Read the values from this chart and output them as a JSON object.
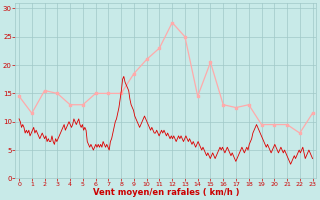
{
  "bg_color": "#c8eae8",
  "grid_color": "#a0c8c8",
  "line_avg_color": "#dd0000",
  "line_gust_color": "#ffaaaa",
  "xlabel": "Vent moyen/en rafales ( km/h )",
  "xlabel_color": "#cc0000",
  "tick_color": "#cc0000",
  "ylim": [
    0,
    31
  ],
  "yticks": [
    0,
    5,
    10,
    15,
    20,
    25,
    30
  ],
  "xticks": [
    0,
    1,
    2,
    3,
    4,
    5,
    6,
    7,
    8,
    9,
    10,
    11,
    12,
    13,
    14,
    15,
    16,
    17,
    18,
    19,
    20,
    21,
    22,
    23
  ],
  "wind_gust": [
    14.5,
    11.5,
    15.5,
    15.0,
    13.0,
    13.0,
    15.0,
    15.0,
    15.0,
    18.5,
    21.0,
    23.0,
    27.5,
    25.0,
    14.5,
    20.5,
    13.0,
    12.5,
    13.0,
    9.5,
    9.5,
    9.5,
    8.0,
    11.5
  ],
  "wind_avg": [
    10.5,
    10.0,
    9.0,
    9.5,
    9.0,
    8.0,
    8.5,
    8.0,
    8.5,
    7.5,
    8.0,
    8.5,
    9.0,
    8.0,
    8.5,
    8.0,
    7.5,
    7.0,
    7.5,
    8.0,
    7.5,
    7.0,
    7.5,
    6.5,
    7.0,
    6.5,
    6.5,
    7.5,
    6.5,
    6.0,
    7.0,
    6.5,
    7.0,
    7.5,
    8.0,
    8.5,
    9.0,
    9.5,
    8.5,
    9.0,
    9.5,
    10.0,
    9.5,
    9.0,
    9.5,
    10.5,
    10.0,
    9.5,
    10.0,
    10.5,
    9.5,
    9.0,
    9.5,
    8.5,
    9.0,
    8.5,
    6.5,
    6.0,
    5.5,
    6.0,
    5.5,
    5.0,
    5.5,
    6.0,
    5.5,
    6.0,
    5.5,
    6.0,
    5.5,
    6.5,
    6.0,
    5.5,
    6.0,
    5.5,
    5.0,
    6.5,
    7.0,
    8.0,
    9.0,
    10.0,
    10.5,
    11.5,
    12.5,
    14.0,
    15.5,
    17.5,
    18.0,
    17.0,
    16.5,
    16.0,
    15.5,
    14.0,
    13.0,
    12.5,
    12.0,
    11.0,
    10.5,
    10.0,
    9.5,
    9.0,
    9.5,
    10.0,
    10.5,
    11.0,
    10.5,
    10.0,
    9.5,
    9.0,
    8.5,
    9.0,
    8.5,
    8.0,
    8.0,
    8.5,
    8.0,
    7.5,
    8.0,
    8.5,
    8.0,
    8.5,
    8.0,
    7.5,
    8.0,
    7.5,
    7.0,
    7.5,
    7.0,
    7.5,
    7.0,
    6.5,
    7.0,
    7.5,
    7.0,
    7.5,
    7.0,
    6.5,
    7.0,
    7.5,
    7.0,
    6.5,
    7.0,
    6.5,
    6.0,
    6.5,
    6.0,
    5.5,
    6.0,
    6.5,
    6.0,
    5.5,
    5.0,
    5.5,
    5.0,
    4.5,
    4.0,
    4.5,
    4.0,
    3.5,
    4.0,
    4.5,
    4.0,
    3.5,
    4.0,
    4.5,
    5.0,
    5.5,
    5.0,
    5.5,
    5.0,
    4.5,
    5.0,
    5.5,
    5.0,
    4.5,
    4.0,
    4.5,
    4.0,
    3.5,
    3.0,
    3.5,
    4.0,
    4.5,
    5.0,
    5.5,
    5.0,
    4.5,
    5.0,
    5.5,
    5.0,
    6.0,
    6.5,
    7.0,
    8.0,
    8.5,
    9.0,
    9.5,
    9.0,
    8.5,
    8.0,
    7.5,
    7.0,
    6.5,
    6.0,
    5.5,
    6.0,
    5.5,
    5.0,
    4.5,
    5.0,
    5.5,
    6.0,
    5.5,
    5.0,
    4.5,
    5.0,
    5.5,
    5.0,
    4.5,
    5.0,
    4.5,
    4.0,
    3.5,
    3.0,
    2.5,
    3.0,
    3.5,
    4.0,
    3.5,
    4.0,
    4.5,
    5.0,
    4.5,
    5.0,
    5.5,
    4.5,
    3.5,
    4.0,
    4.5,
    5.0,
    4.5,
    4.0,
    3.5
  ],
  "wind_avg_x_start": 0,
  "wind_avg_x_end": 23
}
